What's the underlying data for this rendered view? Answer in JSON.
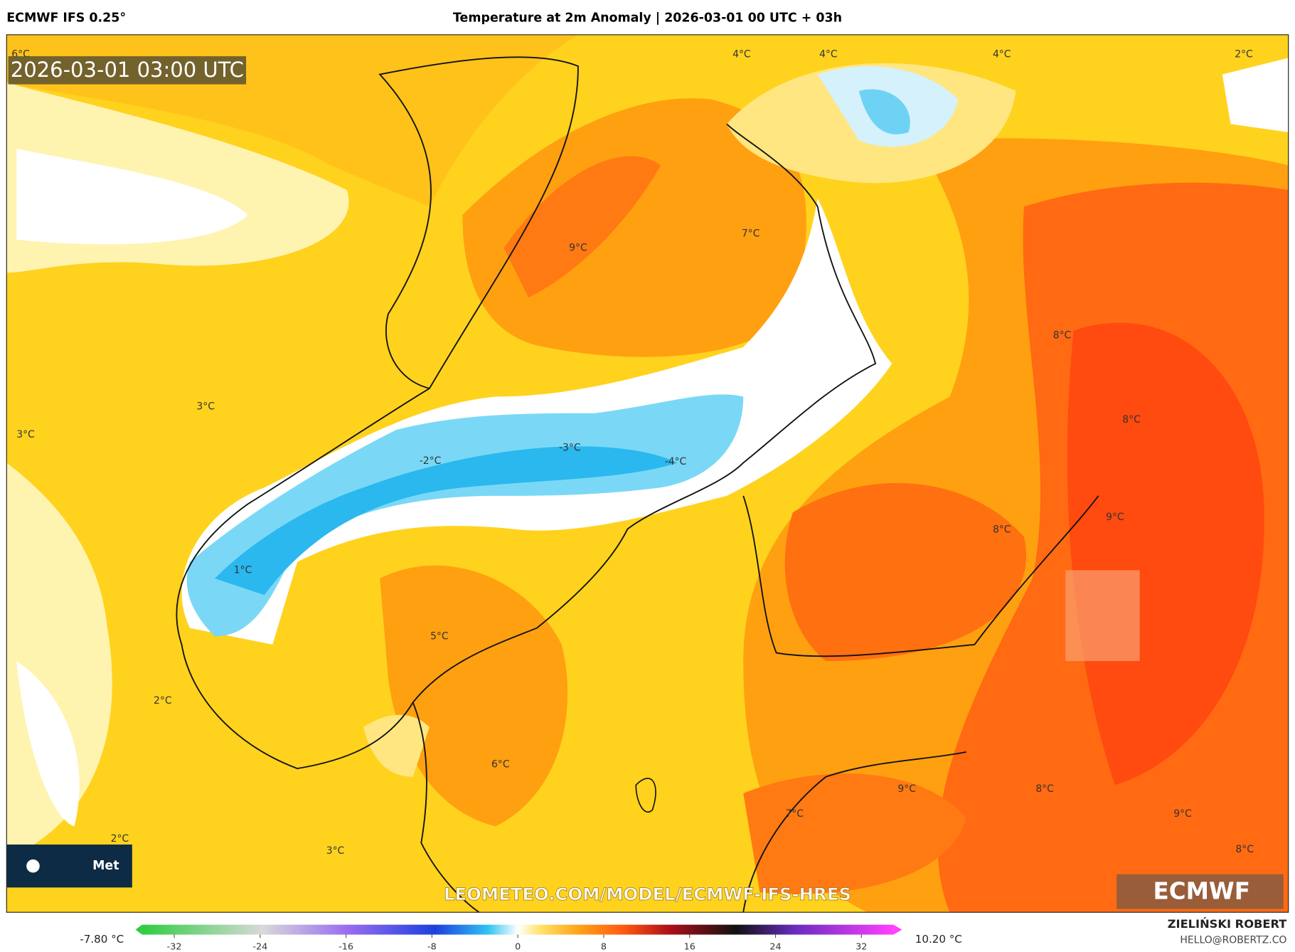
{
  "header": {
    "source": "ECMWF IFS 0.25°",
    "title": "Temperature at 2m Anomaly | 2026-03-01 00 UTC + 03h"
  },
  "map": {
    "timestamp": "2026-03-01 03:00 UTC",
    "labels": [
      "6°C",
      "4°C",
      "4°C",
      "4°C",
      "2°C",
      "7°C",
      "9°C",
      "8°C",
      "3°C",
      "3°C",
      "8°C",
      "-2°C",
      "-3°C",
      "-4°C",
      "9°C",
      "8°C",
      "1°C",
      "5°C",
      "2°C",
      "6°C",
      "9°C",
      "8°C",
      "7°C",
      "9°C",
      "2°C",
      "3°C",
      "8°C"
    ],
    "watermark": "LEOMETEO.COM/MODEL/ECMWF-IFS-HRES",
    "logo": "ECMWF",
    "badge": "Met"
  },
  "colorbar": {
    "min_label": "-7.80 °C",
    "max_label": "10.20 °C",
    "range": [
      -35,
      35
    ],
    "ticks": [
      -32,
      -24,
      -16,
      -8,
      0,
      8,
      16,
      24,
      32
    ]
  },
  "credit": {
    "name": "ZIELIŃSKI ROBERT",
    "email": "HELLO@ROBERTZ.CO"
  }
}
